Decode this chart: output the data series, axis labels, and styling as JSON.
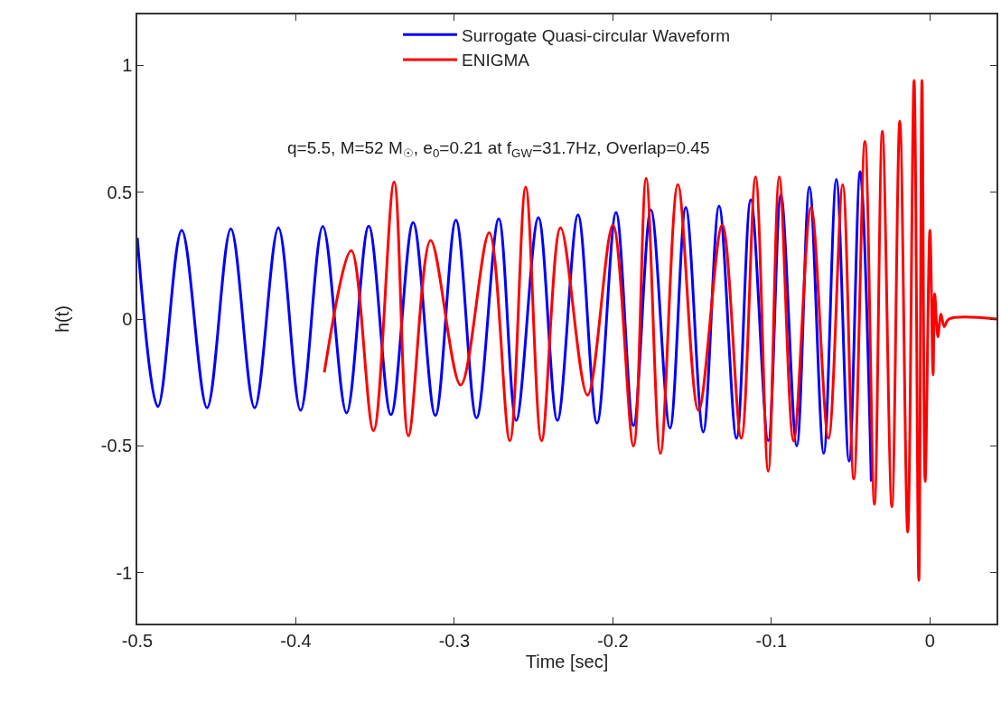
{
  "chart_data": {
    "type": "line",
    "xlabel": "Time [sec]",
    "ylabel": "h(t)",
    "annotations": [
      "q=5.5, M=52 M$_{☉}$, e$_{0}$=0.21 at f$_{GW}$=31.7Hz, Overlap=0.45"
    ],
    "xlim": [
      -0.5,
      0.042
    ],
    "xticks": [
      -0.5,
      -0.4,
      -0.3,
      -0.2,
      -0.1,
      0
    ],
    "ylim": [
      -1.2,
      1.2
    ],
    "yticks": [
      -1,
      -0.5,
      0,
      0.5,
      1
    ],
    "legend": "top",
    "marker": "none",
    "line_style": "solid",
    "series": [
      {
        "name": "Surrogate Quasi-circular Waveform",
        "color": "#0000ff",
        "x": [
          -0.5,
          -0.487,
          -0.472,
          -0.456,
          -0.441,
          -0.426,
          -0.411,
          -0.397,
          -0.383,
          -0.368,
          -0.354,
          -0.34,
          -0.326,
          -0.312,
          -0.299,
          -0.286,
          -0.272,
          -0.261,
          -0.247,
          -0.235,
          -0.222,
          -0.21,
          -0.198,
          -0.187,
          -0.176,
          -0.164,
          -0.154,
          -0.143,
          -0.133,
          -0.122,
          -0.113,
          -0.102,
          -0.094,
          -0.084,
          -0.076,
          -0.067,
          -0.059,
          -0.051,
          -0.044,
          -0.037
        ],
        "values": [
          0.32,
          -0.345,
          0.35,
          -0.35,
          0.355,
          -0.35,
          0.36,
          -0.36,
          0.365,
          -0.37,
          0.366,
          -0.377,
          0.38,
          -0.38,
          0.39,
          -0.39,
          0.395,
          -0.4,
          0.4,
          -0.4,
          0.41,
          -0.41,
          0.42,
          -0.42,
          0.43,
          -0.43,
          0.44,
          -0.445,
          0.445,
          -0.47,
          0.47,
          -0.48,
          0.49,
          -0.5,
          0.52,
          -0.53,
          0.55,
          -0.56,
          0.58,
          -0.64
        ]
      },
      {
        "name": "ENIGMA",
        "color": "#ff0000",
        "x": [
          -0.382,
          -0.365,
          -0.351,
          -0.338,
          -0.329,
          -0.315,
          -0.296,
          -0.278,
          -0.265,
          -0.255,
          -0.245,
          -0.233,
          -0.216,
          -0.2,
          -0.187,
          -0.179,
          -0.17,
          -0.159,
          -0.146,
          -0.131,
          -0.119,
          -0.11,
          -0.102,
          -0.095,
          -0.086,
          -0.075,
          -0.064,
          -0.055,
          -0.048,
          -0.041,
          -0.035,
          -0.03,
          -0.024,
          -0.019,
          -0.014,
          -0.01,
          -0.007,
          -0.005,
          -0.003,
          0.0,
          0.002,
          0.003,
          0.005,
          0.007,
          0.009,
          0.012,
          0.042
        ],
        "values": [
          -0.21,
          0.27,
          -0.44,
          0.54,
          -0.46,
          0.31,
          -0.26,
          0.34,
          -0.48,
          0.52,
          -0.48,
          0.36,
          -0.3,
          0.37,
          -0.5,
          0.555,
          -0.53,
          0.53,
          -0.36,
          0.37,
          -0.47,
          0.56,
          -0.6,
          0.56,
          -0.48,
          0.44,
          -0.47,
          0.53,
          -0.63,
          0.7,
          -0.73,
          0.74,
          -0.74,
          0.78,
          -0.84,
          0.94,
          -1.03,
          0.94,
          -0.64,
          0.35,
          -0.22,
          0.1,
          -0.07,
          0.02,
          -0.03,
          0,
          0
        ]
      }
    ]
  }
}
